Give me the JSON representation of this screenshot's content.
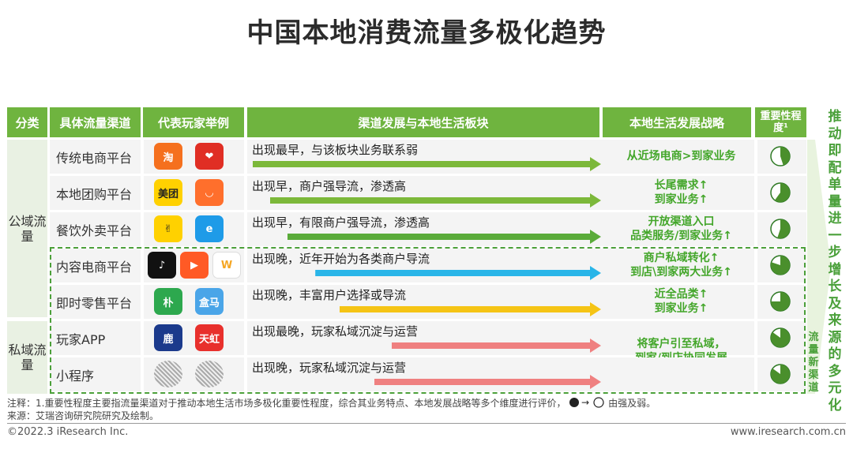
{
  "title": "中国本地消费流量多极化趋势",
  "headers": {
    "category": "分类",
    "channel": "具体流量渠道",
    "players": "代表玩家举例",
    "development": "渠道发展与本地生活板块",
    "strategy": "本地生活发展战略",
    "importance": "重要性程度¹"
  },
  "categories": {
    "public": "公域流量",
    "private": "私域流量"
  },
  "rows": [
    {
      "channel": "传统电商平台",
      "desc": "出现最早，与该板块业务联系弱",
      "strategy": [
        "从近场电商>到家业务"
      ],
      "arrow_color": "#7cb83a",
      "arrow_start": 0.0,
      "importance": 0.45
    },
    {
      "channel": "本地团购平台",
      "desc": "出现早，商户强导流，渗透高",
      "strategy": [
        "长尾需求↑",
        "到家业务↑"
      ],
      "arrow_color": "#7cb83a",
      "arrow_start": 0.05,
      "importance": 0.6
    },
    {
      "channel": "餐饮外卖平台",
      "desc": "出现早，有限商户强导流，渗透高",
      "strategy": [
        "开放渠道入口",
        "品类服务/到家业务↑"
      ],
      "arrow_color": "#5aab3a",
      "arrow_start": 0.1,
      "importance": 0.55
    },
    {
      "channel": "内容电商平台",
      "desc": "出现晚，近年开始为各类商户导流",
      "strategy": [
        "商户私域转化↑",
        "到店\\到家两大业务↑"
      ],
      "arrow_color": "#29b5e8",
      "arrow_start": 0.18,
      "importance": 0.8
    },
    {
      "channel": "即时零售平台",
      "desc": "出现晚，丰富用户选择或导流",
      "strategy": [
        "近全品类↑",
        "到家业务↑"
      ],
      "arrow_color": "#f5c415",
      "arrow_start": 0.25,
      "importance": 0.75
    },
    {
      "channel": "玩家APP",
      "desc": "出现最晚，玩家私域沉淀与运营",
      "strategy": [
        "将客户引至私域，",
        "到家/到店协同发展"
      ],
      "arrow_color": "#ef8080",
      "arrow_start": 0.4,
      "importance": 0.85
    },
    {
      "channel": "小程序",
      "desc": "出现晚，玩家私域沉淀与运营",
      "strategy": [],
      "arrow_color": "#ef8080",
      "arrow_start": 0.35,
      "importance": 0.85
    }
  ],
  "players": [
    [
      {
        "name": "淘宝",
        "text": "淘",
        "bg": "#f5701e"
      },
      {
        "name": "拼多多",
        "text": "❤",
        "bg": "#e02e24"
      }
    ],
    [
      {
        "name": "美团",
        "text": "美团",
        "bg": "#ffd100",
        "fg": "#222"
      },
      {
        "name": "滴滴",
        "text": "◡",
        "bg": "#ff6f2c"
      }
    ],
    [
      {
        "name": "美团外卖",
        "text": "✌",
        "bg": "#ffd100",
        "fg": "#222"
      },
      {
        "name": "饿了么",
        "text": "e",
        "bg": "#1e9be8"
      }
    ],
    [
      {
        "name": "抖音",
        "text": "♪",
        "bg": "#111111"
      },
      {
        "name": "快手",
        "text": "▶",
        "bg": "#ff5a25"
      },
      {
        "name": "小红书",
        "text": "W",
        "bg": "#ffffff",
        "fg": "#f5a623"
      }
    ],
    [
      {
        "name": "朴朴",
        "text": "朴",
        "bg": "#2da84e"
      },
      {
        "name": "盒马",
        "text": "盒马",
        "bg": "#4aa5e8"
      }
    ],
    [
      {
        "name": "瑞幸",
        "text": "鹿",
        "bg": "#1b3a8c"
      },
      {
        "name": "天虹",
        "text": "天虹",
        "bg": "#e8302c"
      }
    ],
    [
      {
        "name": "小程序码1",
        "text": "",
        "bg": "#eeeeee",
        "fg": "#555"
      },
      {
        "name": "小程序码2",
        "text": "",
        "bg": "#eeeeee",
        "fg": "#555"
      }
    ]
  ],
  "side_text": "推动即配单量进一步增长及来源的多元化",
  "new_channel_text": "流量新渠道",
  "footnote1": "注释：1.重要性程度主要指流量渠道对于推动本地生活市场多极化重要性程度，综合其业务特点、本地发展战略等多个维度进行评价，",
  "footnote1_tail": "由强及弱。",
  "footnote2": "来源：艾瑞咨询研究院研究及绘制。",
  "copyright": "©2022.3 iResearch Inc.",
  "website": "www.iresearch.com.cn"
}
